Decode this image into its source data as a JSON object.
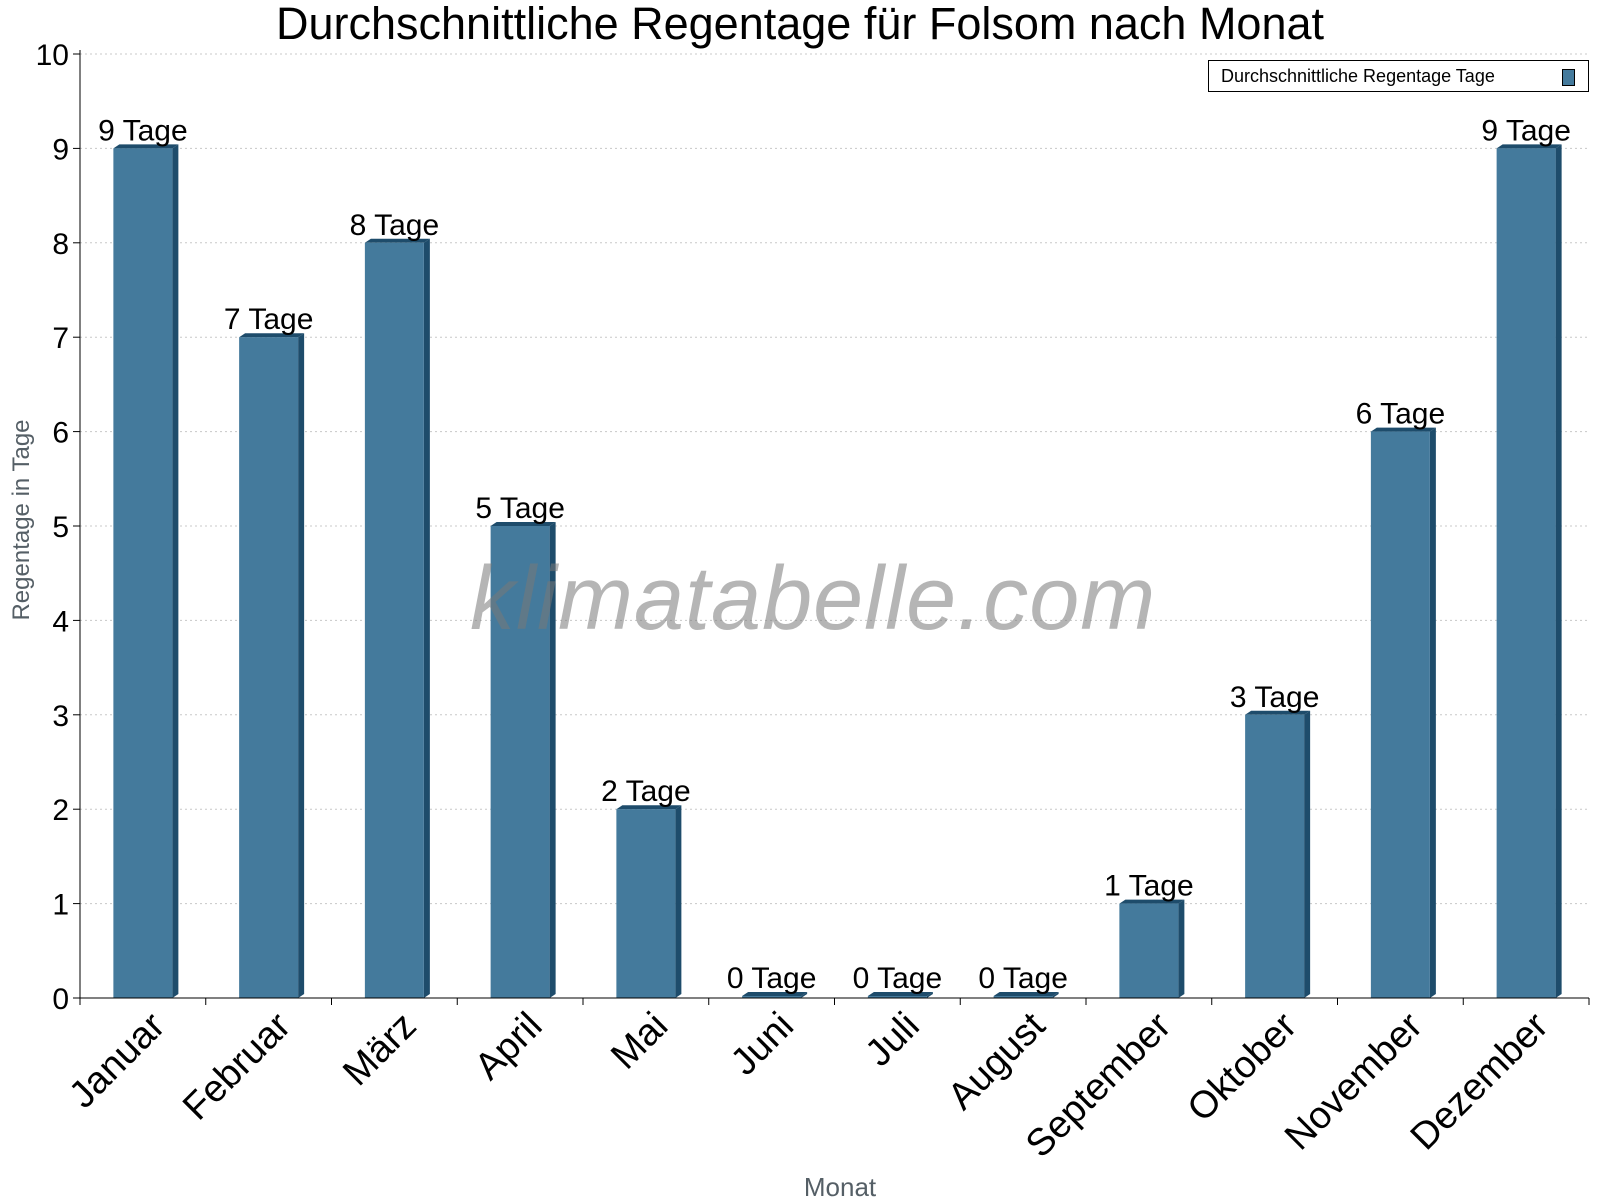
{
  "chart_data": {
    "type": "bar",
    "title": "Durchschnittliche Regentage für Folsom nach Monat",
    "xlabel": "Monat",
    "ylabel": "Regentage in Tage",
    "categories": [
      "Januar",
      "Februar",
      "März",
      "April",
      "Mai",
      "Juni",
      "Juli",
      "August",
      "September",
      "Oktober",
      "November",
      "Dezember"
    ],
    "series": [
      {
        "name": "Durchschnittliche Regentage Tage",
        "values": [
          9,
          7,
          8,
          5,
          2,
          0,
          0,
          0,
          1,
          3,
          6,
          9
        ],
        "data_labels": [
          "9 Tage",
          "7 Tage",
          "8 Tage",
          "5 Tage",
          "2 Tage",
          "0 Tage",
          "0 Tage",
          "0 Tage",
          "1 Tage",
          "3 Tage",
          "6 Tage",
          "9 Tage"
        ]
      }
    ],
    "ylim": [
      0,
      10
    ],
    "yticks": [
      0,
      1,
      2,
      3,
      4,
      5,
      6,
      7,
      8,
      9,
      10
    ],
    "grid": "horizontal dotted",
    "legend": "top-right",
    "colors": {
      "bar": "#447a9c",
      "bar_side": "#1e4c6b"
    }
  },
  "watermark": "klimatabelle.com"
}
